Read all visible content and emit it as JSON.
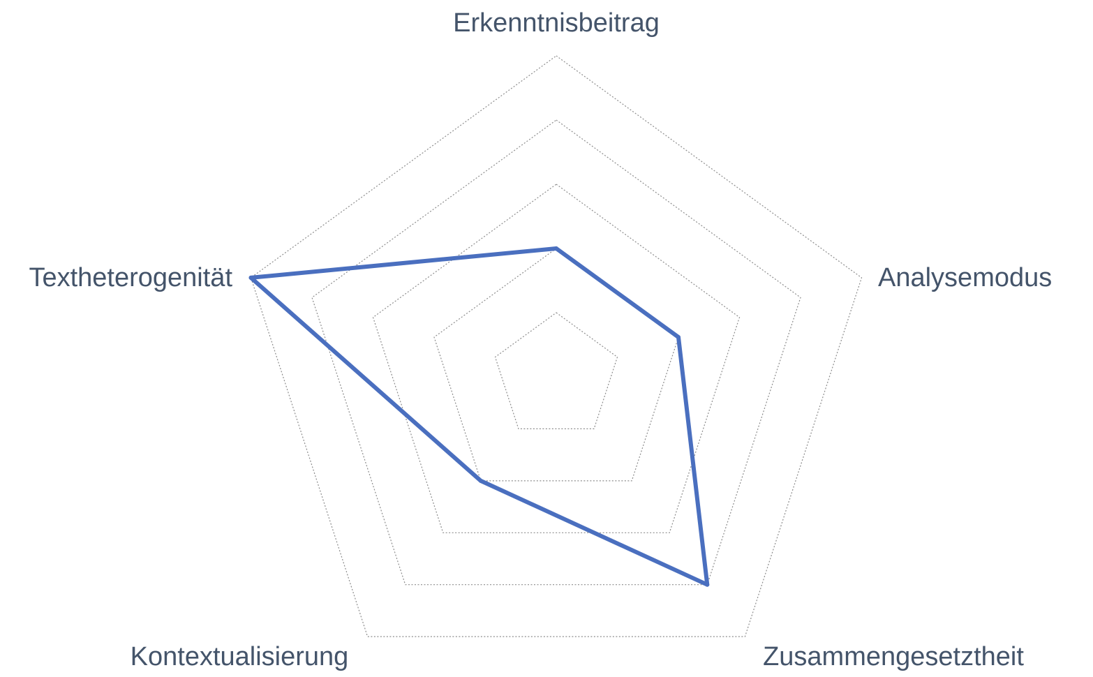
{
  "chart_data": {
    "type": "radar",
    "axes": [
      "Erkenntnisbeitrag",
      "Analysemodus",
      "Zusammengesetztheit",
      "Kontextualisierung",
      "Textheterogenität"
    ],
    "rmin": 0,
    "rmax": 5,
    "rings": 5,
    "gridlines": true,
    "legend": "none",
    "series": [
      {
        "values": [
          2,
          2,
          4,
          2,
          5
        ],
        "color": "#4a6fbf"
      }
    ]
  }
}
